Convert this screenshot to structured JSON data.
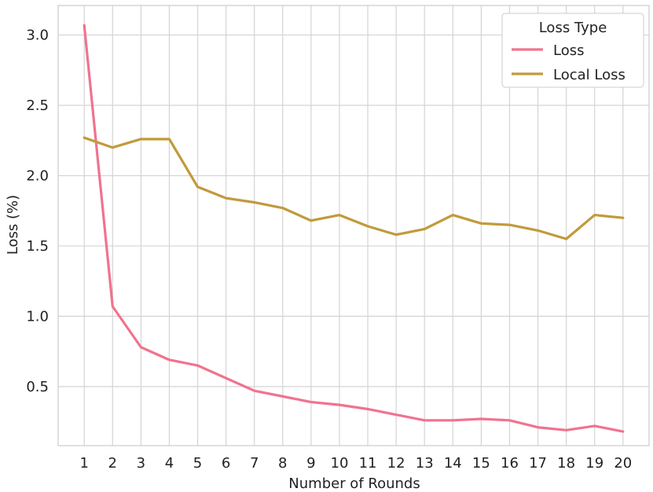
{
  "chart_data": {
    "type": "line",
    "xlabel": "Number of Rounds",
    "ylabel": "Loss (%)",
    "x": [
      1,
      2,
      3,
      4,
      5,
      6,
      7,
      8,
      9,
      10,
      11,
      12,
      13,
      14,
      15,
      16,
      17,
      18,
      19,
      20
    ],
    "xticks": [
      "1",
      "2",
      "3",
      "4",
      "5",
      "6",
      "7",
      "8",
      "9",
      "10",
      "11",
      "12",
      "13",
      "14",
      "15",
      "16",
      "17",
      "18",
      "19",
      "20"
    ],
    "yticks": [
      "0.5",
      "1.0",
      "1.5",
      "2.0",
      "2.5",
      "3.0"
    ],
    "ylim": [
      0.08,
      3.21
    ],
    "xlim": [
      0.08,
      20.92
    ],
    "grid": true,
    "legend": {
      "title": "Loss Type",
      "position": "top-right"
    },
    "series": [
      {
        "name": "Loss",
        "color": "#f0738e",
        "values": [
          3.07,
          1.07,
          0.78,
          0.69,
          0.65,
          0.56,
          0.47,
          0.43,
          0.39,
          0.37,
          0.34,
          0.3,
          0.26,
          0.26,
          0.27,
          0.26,
          0.21,
          0.19,
          0.22,
          0.18
        ]
      },
      {
        "name": "Local Loss",
        "color": "#c19a3b",
        "values": [
          2.27,
          2.2,
          2.26,
          2.26,
          1.92,
          1.84,
          1.81,
          1.77,
          1.68,
          1.72,
          1.64,
          1.58,
          1.62,
          1.72,
          1.66,
          1.65,
          1.61,
          1.55,
          1.72,
          1.7
        ]
      }
    ]
  }
}
